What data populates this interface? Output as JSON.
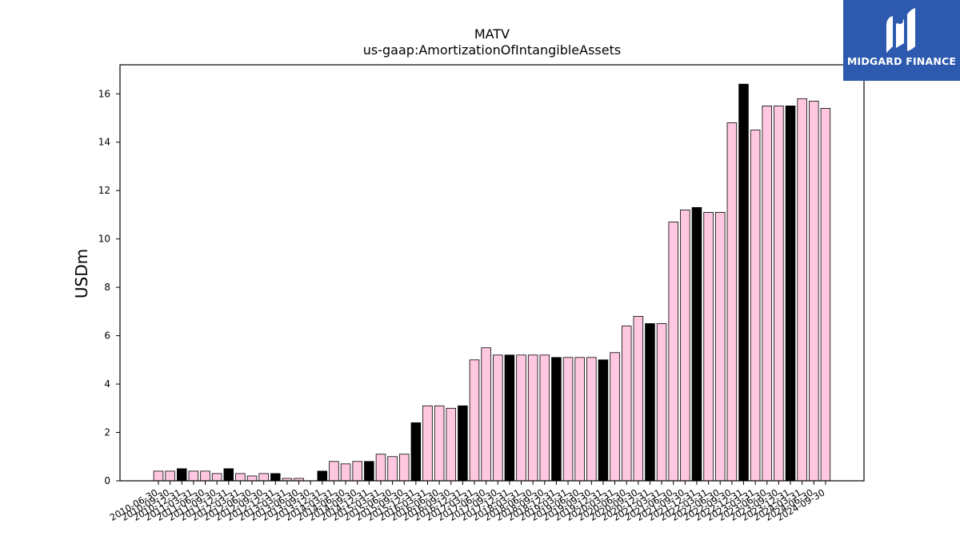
{
  "chart_data": {
    "type": "bar",
    "title": "MATV",
    "subtitle": "us-gaap:AmortizationOfIntangibleAssets",
    "xlabel": "",
    "ylabel": "USDm",
    "ylim": [
      0,
      17.2
    ],
    "yticks": [
      0,
      2,
      4,
      6,
      8,
      10,
      12,
      14,
      16
    ],
    "grid": false,
    "colors": {
      "quarter": "#ffc8e0",
      "annual": "#000000",
      "edge": "#000000"
    },
    "categories": [
      "2010-06-30",
      "2010-09-30",
      "2010-12-31",
      "2011-03-31",
      "2011-06-30",
      "2011-09-30",
      "2011-12-31",
      "2012-03-31",
      "2012-06-30",
      "2012-09-30",
      "2012-12-31",
      "2013-03-31",
      "2013-06-30",
      "2013-09-30",
      "2013-12-31",
      "2014-03-31",
      "2014-06-30",
      "2014-09-30",
      "2014-12-31",
      "2015-03-31",
      "2015-06-30",
      "2015-09-30",
      "2015-12-31",
      "2016-03-31",
      "2016-06-30",
      "2016-09-30",
      "2016-12-31",
      "2017-03-31",
      "2017-06-30",
      "2017-09-30",
      "2017-12-31",
      "2018-03-31",
      "2018-06-30",
      "2018-09-30",
      "2018-12-31",
      "2019-03-31",
      "2019-06-30",
      "2019-09-30",
      "2019-12-31",
      "2020-03-31",
      "2020-06-30",
      "2020-09-30",
      "2020-12-31",
      "2021-03-31",
      "2021-06-30",
      "2021-09-30",
      "2021-12-31",
      "2022-03-31",
      "2022-06-30",
      "2022-09-30",
      "2022-12-31",
      "2023-03-31",
      "2023-06-30",
      "2023-09-30",
      "2023-12-31",
      "2024-03-31",
      "2024-06-30",
      "2024-09-30"
    ],
    "values": [
      0.4,
      0.4,
      0.5,
      0.4,
      0.4,
      0.3,
      0.5,
      0.3,
      0.2,
      0.3,
      0.3,
      0.1,
      0.1,
      0.0,
      0.4,
      0.8,
      0.7,
      0.8,
      0.8,
      1.1,
      1.0,
      1.1,
      2.4,
      3.1,
      3.1,
      3.0,
      3.1,
      5.0,
      5.5,
      5.2,
      5.2,
      5.2,
      5.2,
      5.2,
      5.1,
      5.1,
      5.1,
      5.1,
      5.0,
      5.3,
      6.4,
      6.8,
      6.5,
      6.5,
      10.7,
      11.2,
      11.3,
      11.1,
      11.1,
      14.8,
      16.4,
      14.5,
      15.5,
      15.5,
      15.5,
      15.8,
      15.7,
      15.4
    ],
    "annual_flags": [
      false,
      false,
      true,
      false,
      false,
      false,
      true,
      false,
      false,
      false,
      true,
      false,
      false,
      false,
      true,
      false,
      false,
      false,
      true,
      false,
      false,
      false,
      true,
      false,
      false,
      false,
      true,
      false,
      false,
      false,
      true,
      false,
      false,
      false,
      true,
      false,
      false,
      false,
      true,
      false,
      false,
      false,
      true,
      false,
      false,
      false,
      true,
      false,
      false,
      false,
      true,
      false,
      false,
      false,
      true,
      false,
      false,
      false
    ]
  },
  "logo": {
    "text": "MIDGARD FINANCE",
    "icon": "midgard-logo-icon",
    "background": "#2d5aae"
  }
}
